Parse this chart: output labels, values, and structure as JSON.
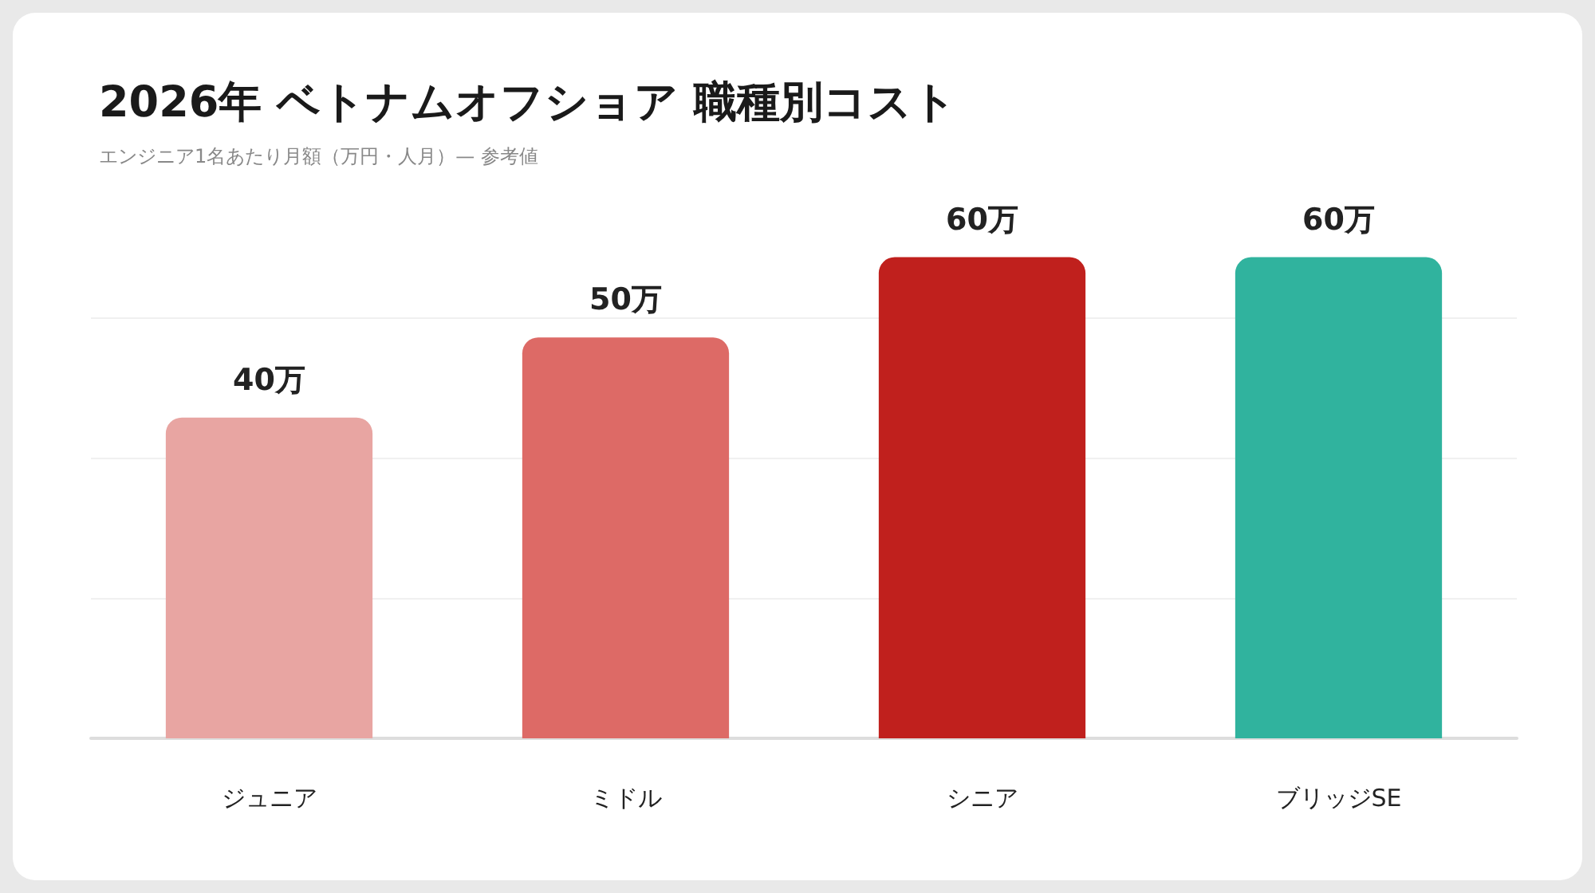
{
  "chart_data": {
    "type": "bar",
    "title": "2026年 ベトナムオフショア 職種別コスト",
    "subtitle": "エンジニア1名あたり月額（万円・人月）— 参考値",
    "categories": [
      "ジュニア",
      "ミドル",
      "シニア",
      "ブリッジSE"
    ],
    "values": [
      40,
      50,
      60,
      60
    ],
    "colors": [
      "#e8a5a2",
      "#dd6a66",
      "#c0201d",
      "#30b39e"
    ],
    "value_labels": [
      "40万",
      "50万",
      "60万",
      "60万"
    ],
    "yticks": [
      {
        "value": 17.5,
        "label": null
      },
      {
        "value": 35,
        "label": null
      },
      {
        "value": 52.5,
        "label": null
      }
    ],
    "grid": "y"
  }
}
